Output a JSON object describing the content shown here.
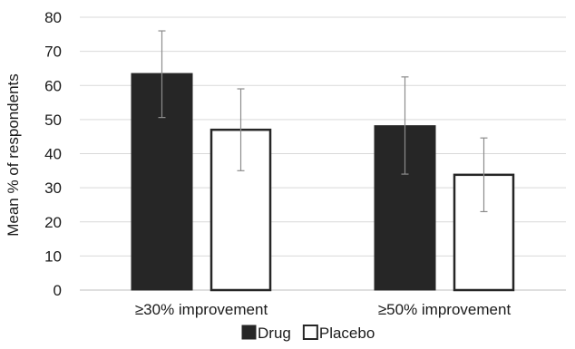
{
  "chart_data": {
    "type": "bar",
    "categories": [
      "≥30% improvement",
      "≥50% improvement"
    ],
    "series": [
      {
        "name": "Drug",
        "values": [
          63.5,
          48.2
        ],
        "error_low": [
          50.6,
          34.0
        ],
        "error_high": [
          76.0,
          62.5
        ],
        "fill": "#262626",
        "stroke": "#262626"
      },
      {
        "name": "Placebo",
        "values": [
          47.0,
          33.8
        ],
        "error_low": [
          35.0,
          23.0
        ],
        "error_high": [
          59.0,
          44.6
        ],
        "fill": "#ffffff",
        "stroke": "#262626"
      }
    ],
    "ylabel": "Mean % of respondents",
    "ylim": [
      0,
      80
    ],
    "yticks": [
      0,
      10,
      20,
      30,
      40,
      50,
      60,
      70,
      80
    ],
    "grid": true,
    "legend_position": "bottom-center"
  }
}
